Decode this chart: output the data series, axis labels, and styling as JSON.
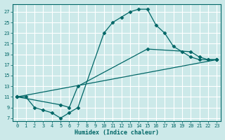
{
  "title": "",
  "xlabel": "Humidex (Indice chaleur)",
  "bg_color": "#cce9e9",
  "grid_color": "#ffffff",
  "line_color": "#006666",
  "xlim": [
    -0.5,
    23.5
  ],
  "ylim": [
    6.5,
    28.5
  ],
  "yticks": [
    7,
    9,
    11,
    13,
    15,
    17,
    19,
    21,
    23,
    25,
    27
  ],
  "xticks": [
    0,
    1,
    2,
    3,
    4,
    5,
    6,
    7,
    8,
    9,
    10,
    11,
    12,
    13,
    14,
    15,
    16,
    17,
    18,
    19,
    20,
    21,
    22,
    23
  ],
  "series": [
    {
      "x": [
        0,
        1,
        2,
        3,
        4,
        5,
        6,
        7,
        10,
        11,
        12,
        13,
        14,
        15,
        16,
        17,
        18,
        19,
        20,
        21,
        22,
        23
      ],
      "y": [
        11,
        11,
        9,
        8.5,
        8,
        7,
        8,
        9,
        23,
        25,
        26,
        27,
        27.5,
        27.5,
        24.5,
        23,
        20.5,
        19.5,
        18.5,
        18,
        18,
        18
      ]
    },
    {
      "x": [
        0,
        5,
        6,
        7,
        15,
        20,
        21,
        22,
        23
      ],
      "y": [
        11,
        9.5,
        9,
        13,
        20,
        19.5,
        18.5,
        18,
        18
      ]
    },
    {
      "x": [
        0,
        23
      ],
      "y": [
        11,
        18
      ]
    }
  ]
}
